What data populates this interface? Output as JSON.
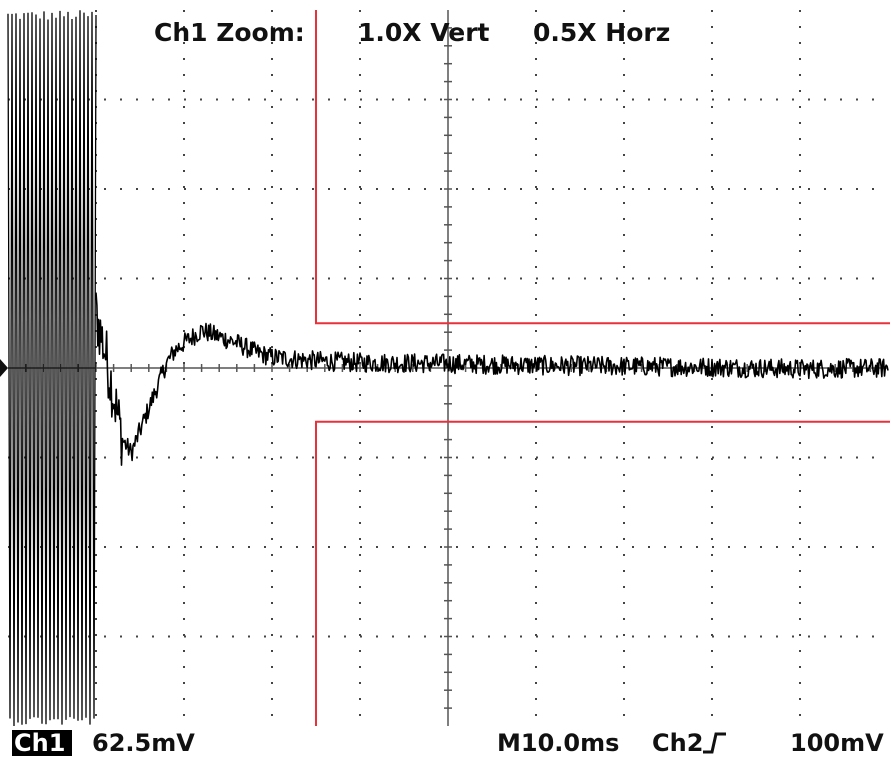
{
  "header": {
    "zoom_label": "Ch1 Zoom:",
    "vert_label": "1.0X Vert",
    "horz_label": "0.5X Horz"
  },
  "footer": {
    "channel_badge": "Ch1",
    "channel_scale": "62.5mV",
    "timebase": "M10.0ms",
    "trigger_source": "Ch2",
    "trigger_slope_icon": "rising-edge-icon",
    "trigger_level": "100mV"
  },
  "colors": {
    "background": "#ffffff",
    "trace": "#000000",
    "grid": "#444444",
    "zoom_box": "#e8313a"
  },
  "chart_data": {
    "type": "line",
    "title": "",
    "xlabel": "",
    "ylabel": "",
    "grid": true,
    "x_divisions": 10,
    "y_divisions": 8,
    "xlim": [
      0,
      10
    ],
    "ylim": [
      -4,
      4
    ],
    "series": [
      {
        "x": [
          0.0,
          1.0,
          1.1,
          1.2,
          1.3,
          1.4,
          1.5,
          1.6,
          1.7,
          1.8,
          1.9,
          2.0,
          2.2,
          2.4,
          2.6,
          2.8,
          3.0,
          3.5,
          4.0,
          5.0,
          6.0,
          7.0,
          8.0,
          9.0,
          10.0
        ],
        "y": [
          0.0,
          0.6,
          0.2,
          -0.3,
          -0.8,
          -0.95,
          -0.7,
          -0.45,
          -0.2,
          0.05,
          0.2,
          0.28,
          0.42,
          0.35,
          0.28,
          0.18,
          0.12,
          0.08,
          0.06,
          0.05,
          0.03,
          0.02,
          0.01,
          -0.01,
          0.0
        ],
        "burst_end_x": 1.0,
        "burst_amplitude": 4.0
      }
    ],
    "zoom_window": {
      "x_start": 3.5,
      "x_end": 10.0,
      "y_low": -0.6,
      "y_high": 0.5
    }
  }
}
